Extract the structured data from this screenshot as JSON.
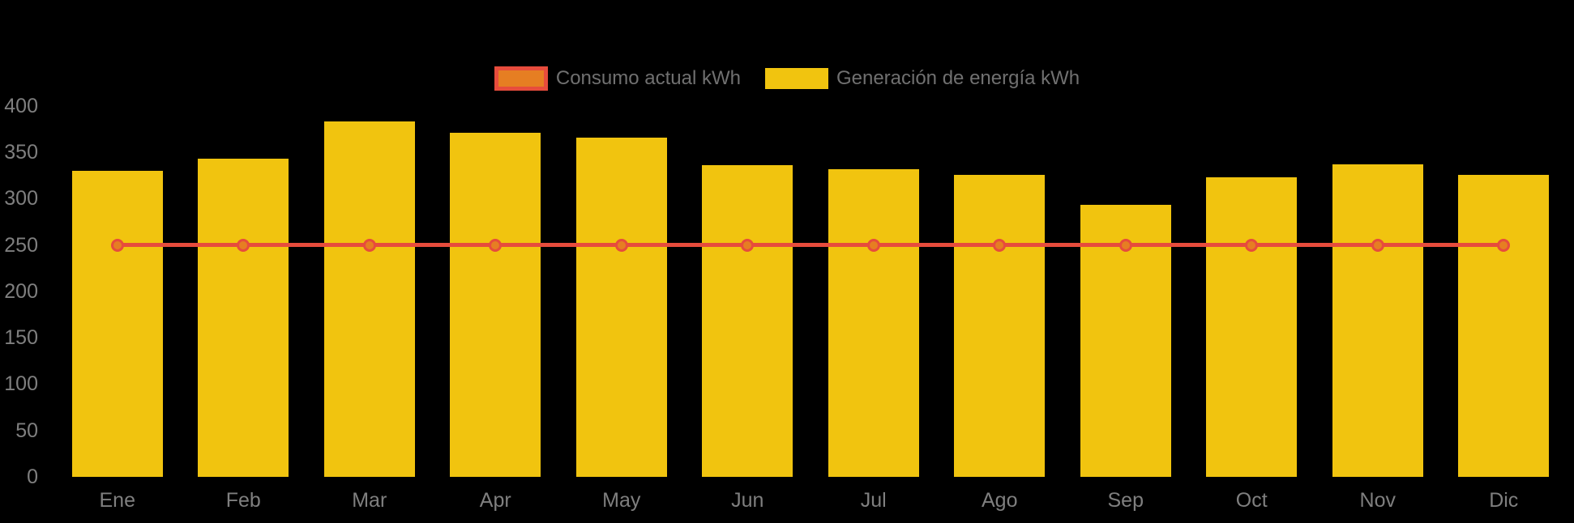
{
  "page": {
    "background": "#000000"
  },
  "legend": {
    "position": "top-center",
    "text_color": "#707070",
    "items": [
      {
        "label": "Consumo actual kWh",
        "swatch_fill": "#E67E22",
        "swatch_border": "#E74C3C",
        "series_type": "line"
      },
      {
        "label": "Generación de energía kWh",
        "swatch_fill": "#F1C40F",
        "swatch_border": "#F1C40F",
        "series_type": "bar"
      }
    ]
  },
  "chart_data": {
    "type": "bar",
    "title": "",
    "xlabel": "",
    "ylabel": "",
    "categories": [
      "Ene",
      "Feb",
      "Mar",
      "Apr",
      "May",
      "Jun",
      "Jul",
      "Ago",
      "Sep",
      "Oct",
      "Nov",
      "Dic"
    ],
    "series": [
      {
        "name": "Consumo actual kWh",
        "type": "line",
        "color": "#E74C3C",
        "marker_fill": "#E67E22",
        "values": [
          250,
          250,
          250,
          250,
          250,
          250,
          250,
          250,
          250,
          250,
          250,
          250
        ]
      },
      {
        "name": "Generación de energía kWh",
        "type": "bar",
        "color": "#F1C40F",
        "values": [
          330,
          343,
          383,
          371,
          366,
          336,
          332,
          326,
          293,
          323,
          337,
          326
        ]
      }
    ],
    "y_ticks": [
      0,
      50,
      100,
      150,
      200,
      250,
      300,
      350,
      400
    ],
    "ylim": [
      0,
      420
    ],
    "grid": false,
    "legend_position": "top",
    "axis_text_color": "#7F7F7F",
    "background": "#000000"
  }
}
